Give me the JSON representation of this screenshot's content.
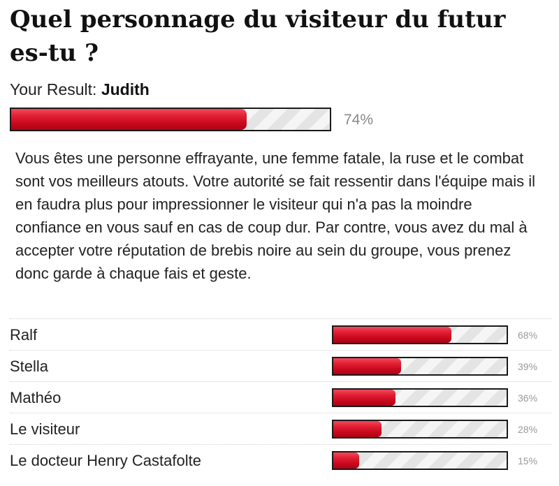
{
  "quiz": {
    "title": "Quel personnage du visiteur du futur es-tu ?"
  },
  "result": {
    "label": "Your Result:",
    "name": "Judith",
    "percent": 74,
    "percent_text": "74%",
    "description": "Vous êtes une personne effrayante, une femme fatale, la ruse et le combat sont vos meilleurs atouts. Votre autorité se fait ressentir dans l'équipe mais il en faudra plus pour impressionner le visiteur qui n'a pas la moindre confiance en vous sauf en cas de coup dur. Par contre, vous avez du mal à accepter votre réputation de brebis noire au sein du groupe, vous prenez donc garde à chaque fais et geste."
  },
  "other_results": [
    {
      "name": "Ralf",
      "percent": 68,
      "percent_text": "68%"
    },
    {
      "name": "Stella",
      "percent": 39,
      "percent_text": "39%"
    },
    {
      "name": "Mathéo",
      "percent": 36,
      "percent_text": "36%"
    },
    {
      "name": "Le visiteur",
      "percent": 28,
      "percent_text": "28%"
    },
    {
      "name": "Le docteur Henry Castafolte",
      "percent": 15,
      "percent_text": "15%"
    }
  ],
  "colors": {
    "bar_fill": "#d90f24",
    "bar_border": "#1a1a1a",
    "bar_track": "#e8e8e8",
    "percent_text": "#888888",
    "divider": "#cfcfcf"
  }
}
